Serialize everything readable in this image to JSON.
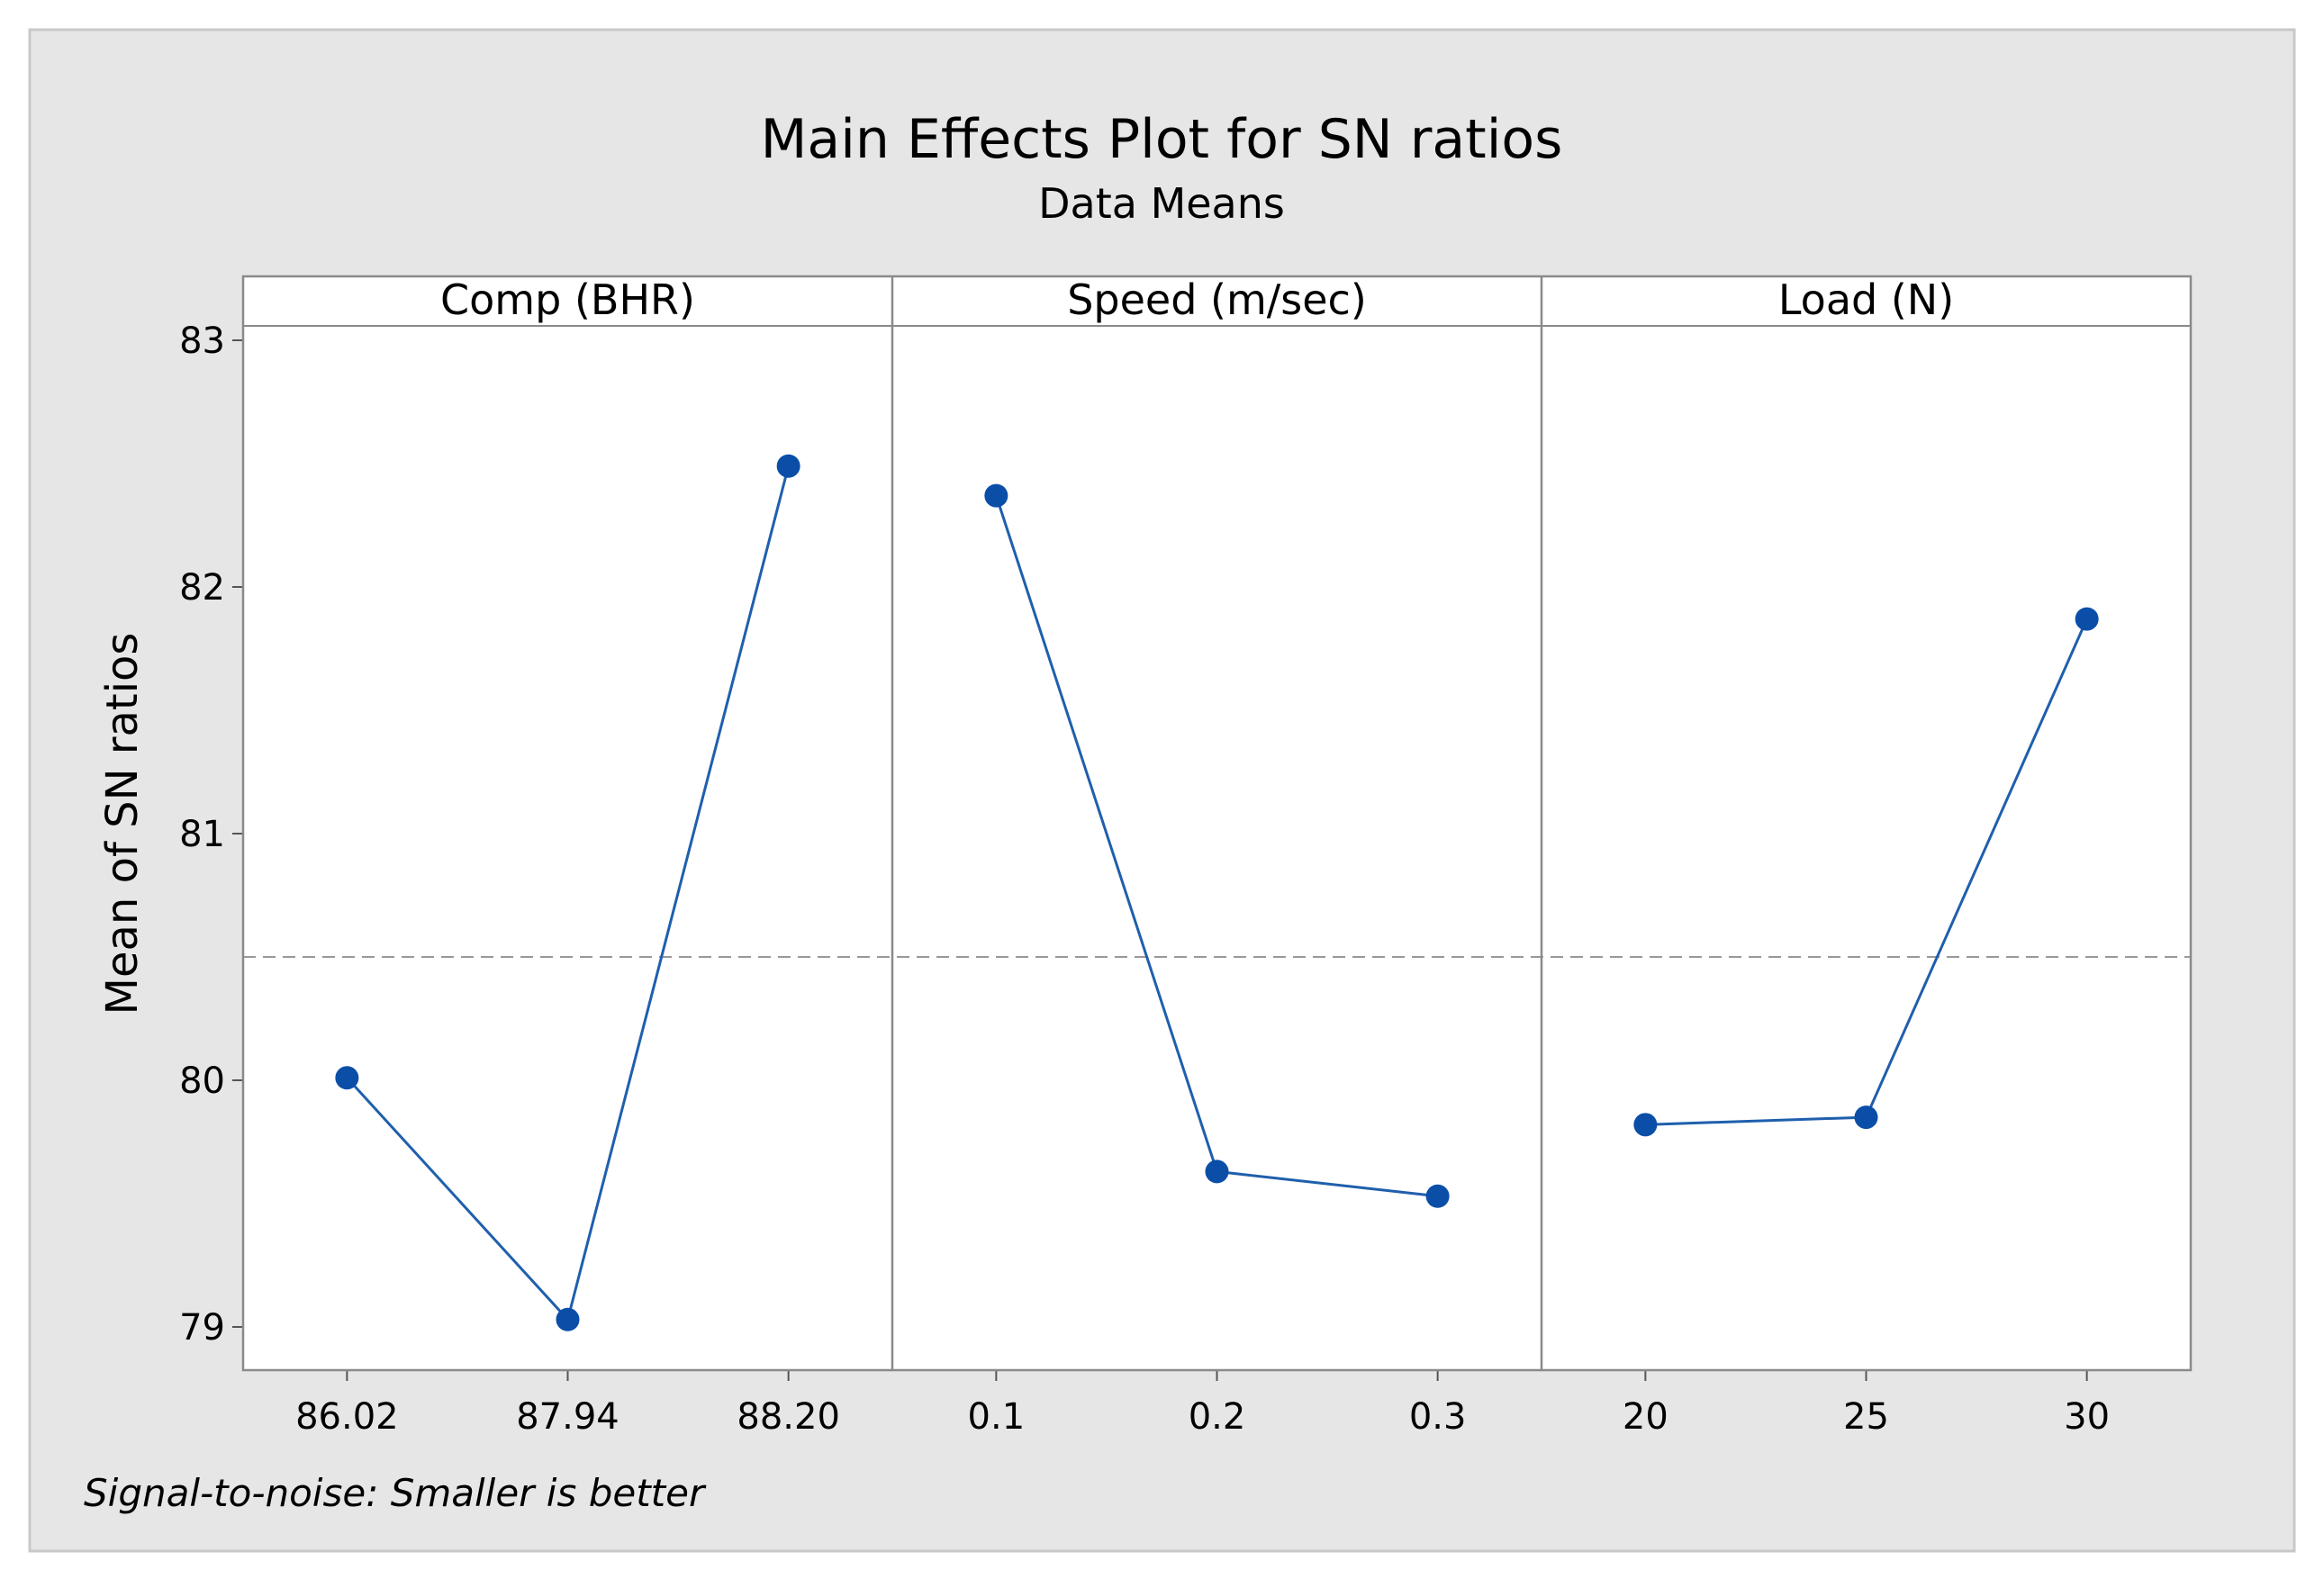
{
  "chart_data": {
    "type": "line",
    "title": "Main Effects Plot for SN ratios",
    "subtitle": "Data Means",
    "ylabel": "Mean of SN ratios",
    "ylim": [
      78.8,
      83.05
    ],
    "yticks": [
      "79",
      "80",
      "81",
      "82",
      "83"
    ],
    "ytick_values": [
      79,
      80,
      81,
      82,
      83
    ],
    "reference_mean": 80.5,
    "note": "Signal-to-noise: Smaller is better",
    "colors": {
      "line": "#1f5fad",
      "marker": "#0a4ea8",
      "background": "#e6e6e6",
      "ref_line": "#999999"
    },
    "panels": [
      {
        "label": "Comp (BHR)",
        "categories": [
          "86.02",
          "87.94",
          "88.20"
        ],
        "values": [
          80.01,
          79.03,
          82.49
        ]
      },
      {
        "label": "Speed (m/sec)",
        "categories": [
          "0.1",
          "0.2",
          "0.3"
        ],
        "values": [
          82.37,
          79.63,
          79.53
        ]
      },
      {
        "label": "Load (N)",
        "categories": [
          "20",
          "25",
          "30"
        ],
        "values": [
          79.82,
          79.85,
          81.87
        ]
      }
    ]
  }
}
